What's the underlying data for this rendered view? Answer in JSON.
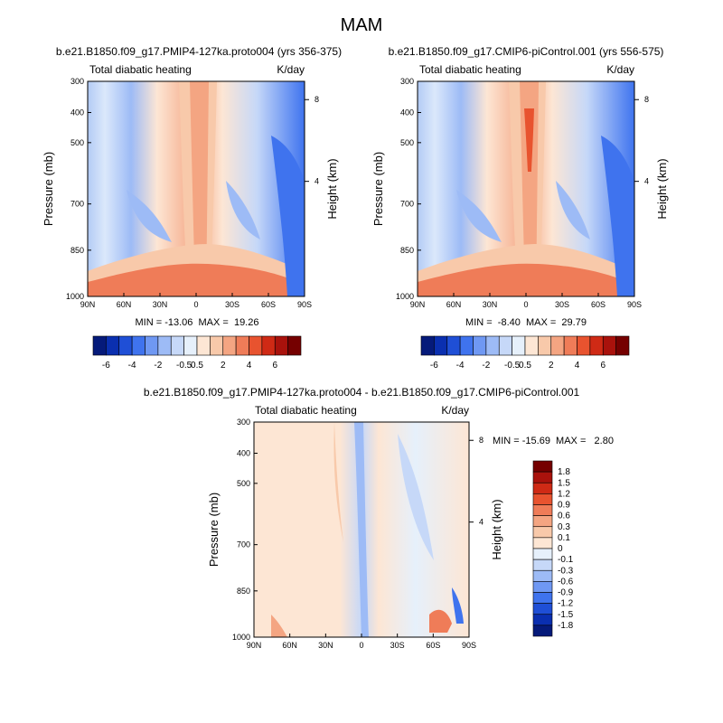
{
  "figure": {
    "title": "MAM"
  },
  "chart_data": [
    {
      "type": "heatmap",
      "id": "panel1",
      "run_title": "b.e21.B1850.f09_g17.PMIP4-127ka.proto004 (yrs 356-375)",
      "left_label": "Total diabatic heating",
      "right_label": "K/day",
      "ylabel": "Pressure (mb)",
      "y2label": "Height (km)",
      "x_ticks": [
        "90N",
        "60N",
        "30N",
        "0",
        "30S",
        "60S",
        "90S"
      ],
      "y_ticks": [
        "300",
        "400",
        "500",
        "700",
        "850",
        "1000"
      ],
      "y2_ticks": [
        "8",
        "4"
      ],
      "min": -13.06,
      "max": 19.26,
      "stats_text": "MIN = -13.06  MAX =  19.26"
    },
    {
      "type": "heatmap",
      "id": "panel2",
      "run_title": "b.e21.B1850.f09_g17.CMIP6-piControl.001 (yrs 556-575)",
      "left_label": "Total diabatic heating",
      "right_label": "K/day",
      "ylabel": "Pressure (mb)",
      "y2label": "Height (km)",
      "x_ticks": [
        "90N",
        "60N",
        "30N",
        "0",
        "30S",
        "60S",
        "90S"
      ],
      "y_ticks": [
        "300",
        "400",
        "500",
        "700",
        "850",
        "1000"
      ],
      "y2_ticks": [
        "8",
        "4"
      ],
      "min": -8.4,
      "max": 29.79,
      "stats_text": "MIN =  -8.40  MAX =  29.79"
    },
    {
      "type": "heatmap",
      "id": "panel3",
      "run_title": "b.e21.B1850.f09_g17.PMIP4-127ka.proto004 - b.e21.B1850.f09_g17.CMIP6-piControl.001",
      "left_label": "Total diabatic heating",
      "right_label": "K/day",
      "ylabel": "Pressure (mb)",
      "y2label": "Height (km)",
      "x_ticks": [
        "90N",
        "60N",
        "30N",
        "0",
        "30S",
        "60S",
        "90S"
      ],
      "y_ticks": [
        "300",
        "400",
        "500",
        "700",
        "850",
        "1000"
      ],
      "y2_ticks": [
        "8",
        "4"
      ],
      "min": -15.69,
      "max": 2.8,
      "stats_text": "MIN = -15.69  MAX =   2.80"
    }
  ],
  "colorbar_top": {
    "colors": [
      "#051a7a",
      "#0a2fb0",
      "#1f4fd6",
      "#3f73ee",
      "#6f98f3",
      "#9dbbf6",
      "#c6d8f8",
      "#e6f0fb",
      "#fde6d4",
      "#f8c9aa",
      "#f4a582",
      "#ef7c58",
      "#e8532f",
      "#cf2a15",
      "#a9120c",
      "#750000"
    ],
    "labels": [
      "-6",
      "-4",
      "-2",
      "-0.5",
      "0.5",
      "2",
      "4",
      "6"
    ]
  },
  "colorbar_diff": {
    "colors": [
      "#051a7a",
      "#0a2fb0",
      "#1f4fd6",
      "#3f73ee",
      "#6f98f3",
      "#9dbbf6",
      "#c6d8f8",
      "#e6f0fb",
      "#fde6d4",
      "#f8c9aa",
      "#f4a582",
      "#ef7c58",
      "#e8532f",
      "#cf2a15",
      "#a9120c",
      "#750000"
    ],
    "labels": [
      "1.8",
      "1.5",
      "1.2",
      "0.9",
      "0.6",
      "0.3",
      "0.1",
      "0",
      "-0.1",
      "-0.3",
      "-0.6",
      "-0.9",
      "-1.2",
      "-1.5",
      "-1.8"
    ]
  }
}
